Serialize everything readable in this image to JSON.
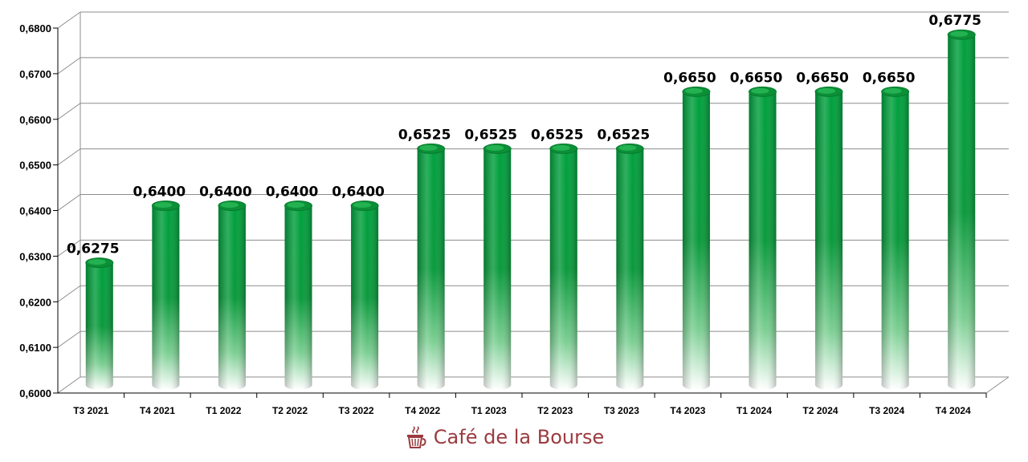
{
  "chart_data": {
    "type": "bar",
    "categories": [
      "T3 2021",
      "T4 2021",
      "T1 2022",
      "T2 2022",
      "T3 2022",
      "T4 2022",
      "T1 2023",
      "T2 2023",
      "T3 2023",
      "T4 2023",
      "T1 2024",
      "T2 2024",
      "T3 2024",
      "T4 2024"
    ],
    "values": [
      0.6275,
      0.64,
      0.64,
      0.64,
      0.64,
      0.6525,
      0.6525,
      0.6525,
      0.6525,
      0.665,
      0.665,
      0.665,
      0.665,
      0.6775
    ],
    "data_labels": [
      "0,6275",
      "0,6400",
      "0,6400",
      "0,6400",
      "0,6400",
      "0,6525",
      "0,6525",
      "0,6525",
      "0,6525",
      "0,6650",
      "0,6650",
      "0,6650",
      "0,6650",
      "0,6775"
    ],
    "y_ticks": [
      0.6,
      0.61,
      0.62,
      0.63,
      0.64,
      0.65,
      0.66,
      0.67,
      0.68
    ],
    "y_tick_labels": [
      "0,6000",
      "0,6100",
      "0,6200",
      "0,6300",
      "0,6400",
      "0,6500",
      "0,6600",
      "0,6700",
      "0,6800"
    ],
    "ylim": [
      0.6,
      0.68
    ],
    "title": "",
    "xlabel": "",
    "ylabel": "",
    "grid": true,
    "legend": "none",
    "style": "3d-cylinder",
    "bar_color": "#0a9a3c"
  },
  "watermark": {
    "text": "Café de la Bourse",
    "icon": "coffee-cup-icon",
    "color": "#9b3b3f"
  }
}
